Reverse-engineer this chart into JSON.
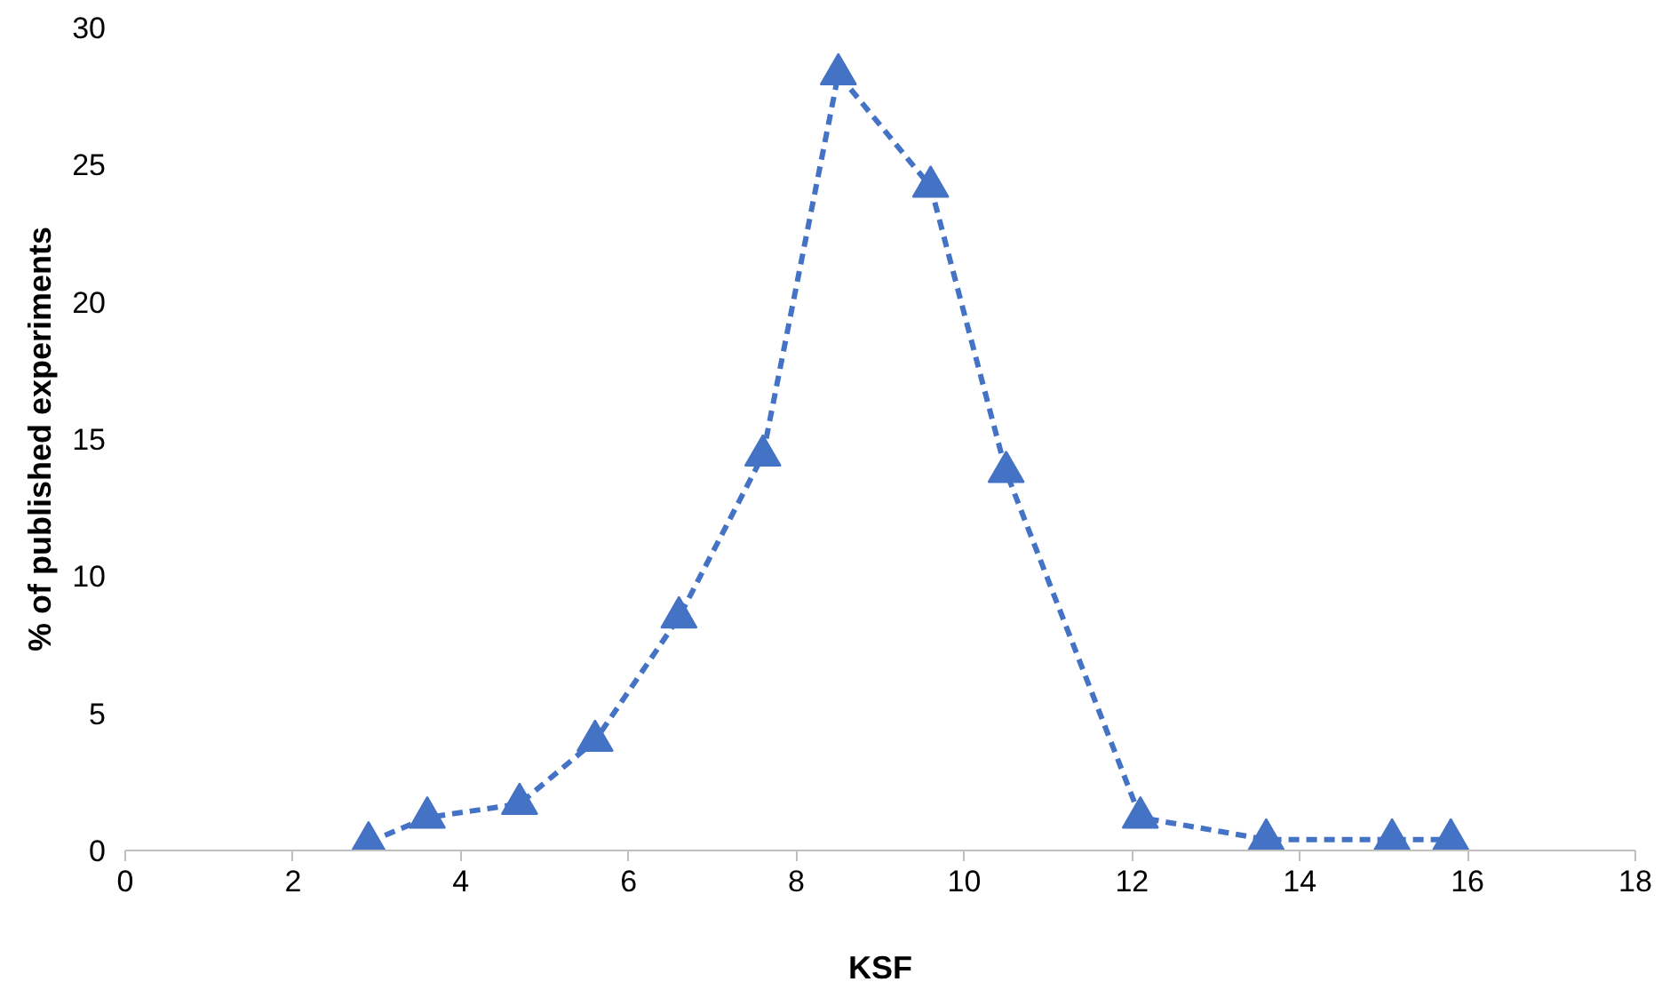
{
  "chart_data": {
    "type": "line",
    "xlabel": "KSF",
    "ylabel": "% of published experiments",
    "x": [
      2.9,
      3.6,
      4.7,
      5.6,
      6.6,
      7.6,
      8.5,
      9.6,
      10.5,
      12.1,
      13.6,
      15.1,
      15.8
    ],
    "series": [
      {
        "color": "#4472c4",
        "values": [
          0.3,
          1.2,
          1.7,
          4.0,
          8.5,
          14.4,
          28.3,
          24.2,
          13.8,
          1.2,
          0.4,
          0.4,
          0.4
        ]
      }
    ],
    "xlim": [
      0,
      18
    ],
    "xticks": [
      0,
      2,
      4,
      6,
      8,
      10,
      12,
      14,
      16,
      18
    ],
    "ylim": [
      0,
      30
    ],
    "yticks": [
      0,
      5,
      10,
      15,
      20,
      25,
      30
    ],
    "grid": false,
    "marker": "triangle",
    "line_style": "dashed"
  }
}
